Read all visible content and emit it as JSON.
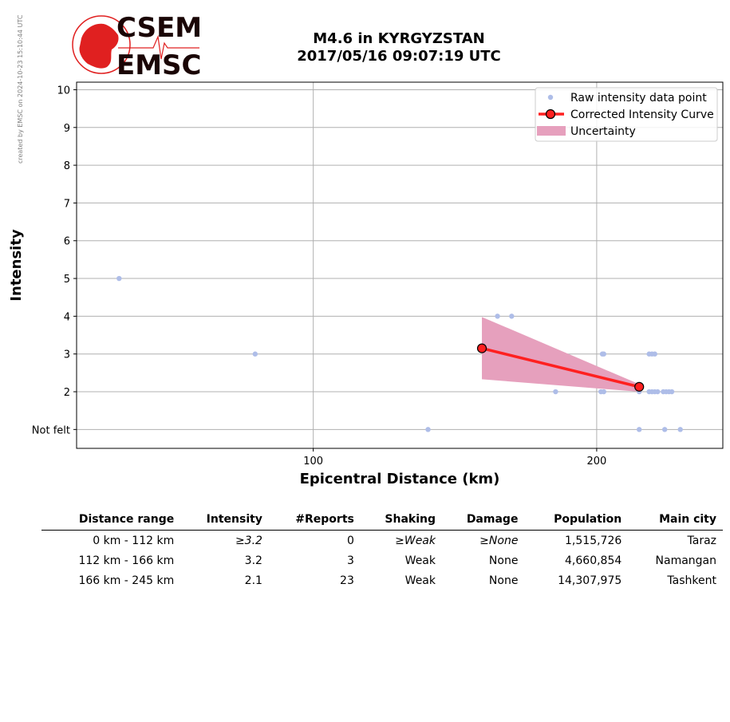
{
  "side_note": "created by EMSC on 2024-10-23 15:10:44 UTC",
  "logo": {
    "line1": "CSEM",
    "line2": "EMSC"
  },
  "colors": {
    "raw_point": "#aebde8",
    "curve": "#ff2020",
    "marker_edge": "#000000",
    "uncertainty": "#e6a0bd",
    "grid": "#b0b0b0"
  },
  "chart_data": {
    "type": "scatter",
    "title": "M4.6 in KYRGYZSTAN",
    "subtitle": "2017/05/16 09:07:19 UTC",
    "xlabel": "Epicentral Distance (km)",
    "ylabel": "Intensity",
    "xlim": [
      16.5,
      244.5
    ],
    "ylim": [
      0.5,
      10.2
    ],
    "x_ticks": [
      100,
      200
    ],
    "y_ticks": [
      {
        "value": 1,
        "label": "Not felt"
      },
      {
        "value": 2,
        "label": "2"
      },
      {
        "value": 3,
        "label": "3"
      },
      {
        "value": 4,
        "label": "4"
      },
      {
        "value": 5,
        "label": "5"
      },
      {
        "value": 6,
        "label": "6"
      },
      {
        "value": 7,
        "label": "7"
      },
      {
        "value": 8,
        "label": "8"
      },
      {
        "value": 9,
        "label": "9"
      },
      {
        "value": 10,
        "label": "10"
      }
    ],
    "grid": true,
    "legend_position": "top-right",
    "series": [
      {
        "name": "Raw intensity data point",
        "kind": "scatter",
        "points": [
          [
            31.5,
            5
          ],
          [
            79.5,
            3
          ],
          [
            140.5,
            1
          ],
          [
            165,
            4
          ],
          [
            170,
            4
          ],
          [
            185.5,
            2
          ],
          [
            201.5,
            2
          ],
          [
            202,
            3
          ],
          [
            202.5,
            3
          ],
          [
            202.5,
            2
          ],
          [
            215,
            2
          ],
          [
            215,
            1
          ],
          [
            218.5,
            3
          ],
          [
            219.5,
            3
          ],
          [
            220.5,
            3
          ],
          [
            218.5,
            2
          ],
          [
            219.5,
            2
          ],
          [
            220.5,
            2
          ],
          [
            221.5,
            2
          ],
          [
            223.5,
            2
          ],
          [
            224.5,
            2
          ],
          [
            225.5,
            2
          ],
          [
            226.5,
            2
          ],
          [
            224,
            1
          ],
          [
            229.5,
            1
          ]
        ]
      },
      {
        "name": "Corrected Intensity Curve",
        "kind": "line",
        "points": [
          [
            159.5,
            3.15
          ],
          [
            215,
            2.13
          ]
        ]
      },
      {
        "name": "Uncertainty",
        "kind": "band",
        "upper": [
          [
            159.5,
            3.98
          ],
          [
            215,
            2.2
          ]
        ],
        "lower": [
          [
            159.5,
            2.33
          ],
          [
            215,
            2.0
          ]
        ]
      }
    ]
  },
  "table": {
    "headers": [
      "Distance range",
      "Intensity",
      "#Reports",
      "Shaking",
      "Damage",
      "Population",
      "Main city"
    ],
    "rows": [
      {
        "range": "0 km -  112 km",
        "intensity": "≥3.2",
        "reports": "0",
        "shaking": "≥Weak",
        "damage": "≥None",
        "population": "1,515,726",
        "city": "Taraz"
      },
      {
        "range": "112 km -  166 km",
        "intensity": "3.2",
        "reports": "3",
        "shaking": "Weak",
        "damage": "None",
        "population": "4,660,854",
        "city": "Namangan"
      },
      {
        "range": "166 km -  245 km",
        "intensity": "2.1",
        "reports": "23",
        "shaking": "Weak",
        "damage": "None",
        "population": "14,307,975",
        "city": "Tashkent"
      }
    ]
  }
}
